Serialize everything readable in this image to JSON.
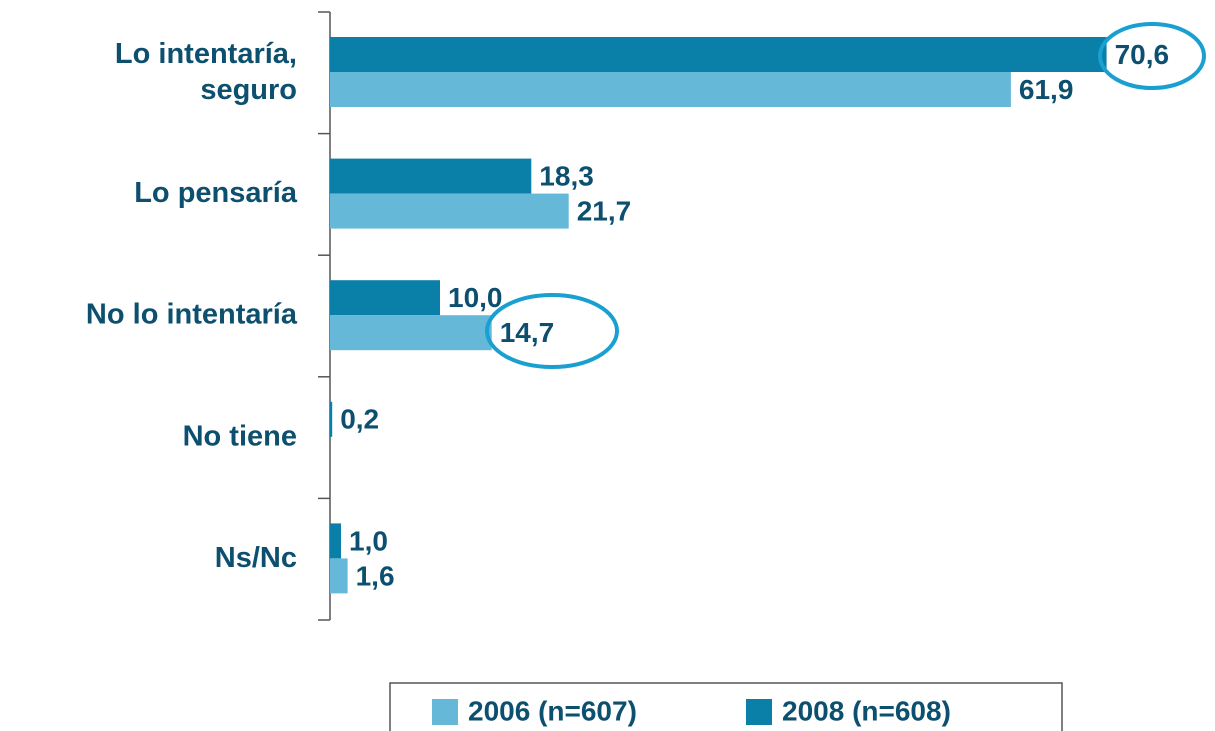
{
  "chart_data": {
    "type": "bar",
    "orientation": "horizontal",
    "categories": [
      "Lo intentaría, seguro",
      "Lo pensaría",
      "No lo intentaría",
      "No tiene",
      "Ns/Nc"
    ],
    "series": [
      {
        "name": "2008 (n=608)",
        "color": "#0a80a8",
        "values": [
          70.6,
          18.3,
          10.0,
          0.2,
          1.0
        ],
        "value_labels": [
          "70,6",
          "18,3",
          "10,0",
          "0,2",
          "1,0"
        ]
      },
      {
        "name": "2006 (n=607)",
        "color": "#66b8d8",
        "values": [
          61.9,
          21.7,
          14.7,
          null,
          1.6
        ],
        "value_labels": [
          "61,9",
          "21,7",
          "14,7",
          null,
          "1,6"
        ]
      }
    ],
    "xlim": [
      0,
      80
    ],
    "legend": "bottom"
  }
}
